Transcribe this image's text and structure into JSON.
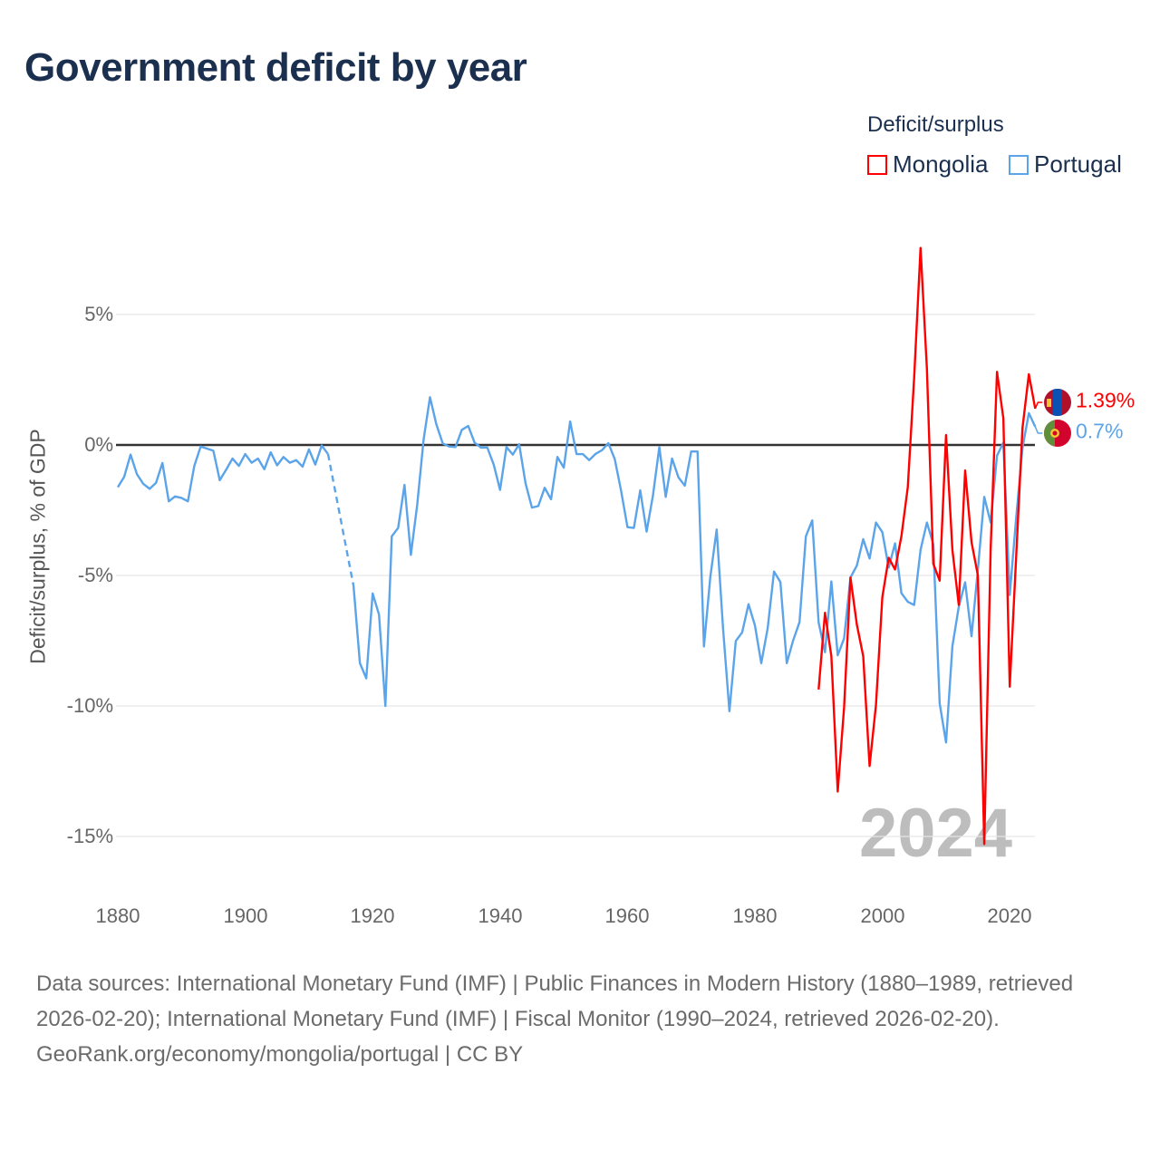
{
  "chart_data": {
    "type": "line",
    "title": "Government deficit by year",
    "xlabel": "",
    "ylabel": "Deficit/surplus, % of GDP",
    "xlim": [
      1880,
      2024
    ],
    "ylim": [
      -15,
      5
    ],
    "x_ticks": [
      "1880",
      "1900",
      "1920",
      "1940",
      "1960",
      "1980",
      "2000",
      "2020"
    ],
    "x_tick_values": [
      1880,
      1900,
      1920,
      1940,
      1960,
      1980,
      2000,
      2020
    ],
    "y_ticks": [
      "5%",
      "0%",
      "-5%",
      "-10%",
      "-15%"
    ],
    "y_tick_values": [
      5,
      0,
      -5,
      -10,
      -15
    ],
    "grid": true,
    "legend": {
      "title": "Deficit/surplus",
      "placement": "top-right"
    },
    "current_year": "2024",
    "series": [
      {
        "name": "Mongolia",
        "color": "#ff0000",
        "start_year": 1990,
        "end_label": "1.39%",
        "values": [
          -9.37,
          -6.43,
          -8.09,
          -13.28,
          -10.05,
          -5.08,
          -6.88,
          -8.09,
          -12.3,
          -9.97,
          -5.83,
          -4.32,
          -4.77,
          -3.49,
          -1.61,
          2.6,
          7.55,
          2.91,
          -4.55,
          -5.2,
          0.38,
          -4.02,
          -6.13,
          -0.98,
          -3.72,
          -5.0,
          -15.29,
          -4.02,
          2.8,
          1.02,
          -9.26,
          -4.32,
          0.65,
          2.71,
          1.39
        ]
      },
      {
        "name": "Portugal",
        "color": "#5ba4ea",
        "start_year": 1880,
        "end_label": "0.7%",
        "values": [
          -1.62,
          -1.22,
          -0.37,
          -1.12,
          -1.49,
          -1.68,
          -1.45,
          -0.69,
          -2.16,
          -1.97,
          -2.03,
          -2.16,
          -0.81,
          -0.06,
          -0.14,
          -0.22,
          -1.35,
          -0.95,
          -0.52,
          -0.8,
          -0.35,
          -0.68,
          -0.52,
          -0.93,
          -0.28,
          -0.78,
          -0.46,
          -0.68,
          -0.58,
          -0.83,
          -0.17,
          -0.75,
          -0.02,
          -0.35,
          null,
          null,
          null,
          -5.4,
          -8.36,
          -8.94,
          -5.69,
          -6.5,
          -10.0,
          -3.5,
          -3.18,
          -1.53,
          -4.21,
          -2.28,
          0.21,
          1.83,
          0.79,
          0.06,
          -0.06,
          -0.08,
          0.58,
          0.73,
          0.09,
          -0.1,
          -0.1,
          -0.75,
          -1.72,
          -0.08,
          -0.37,
          0.03,
          -1.47,
          -2.4,
          -2.34,
          -1.64,
          -2.08,
          -0.46,
          -0.87,
          0.9,
          -0.35,
          -0.35,
          -0.58,
          -0.34,
          -0.2,
          0.07,
          -0.54,
          -1.76,
          -3.15,
          -3.18,
          -1.74,
          -3.32,
          -1.93,
          -0.08,
          -1.99,
          -0.52,
          -1.24,
          -1.56,
          -0.25,
          -0.25,
          -7.72,
          -5.06,
          -3.24,
          -7.03,
          -10.2,
          -7.51,
          -7.18,
          -6.1,
          -6.91,
          -8.36,
          -7.03,
          -4.85,
          -5.25,
          -8.36,
          -7.49,
          -6.79,
          -3.5,
          -2.89,
          -6.8,
          -7.94,
          -5.23,
          -8.06,
          -7.41,
          -5.08,
          -4.62,
          -3.61,
          -4.35,
          -2.97,
          -3.34,
          -4.7,
          -3.77,
          -5.68,
          -6.01,
          -6.13,
          -4.02,
          -2.97,
          -3.8,
          -9.9,
          -11.4,
          -7.71,
          -6.2,
          -5.26,
          -7.33,
          -4.77,
          -1.99,
          -2.97,
          -0.41,
          0.09,
          -5.75,
          -2.82,
          -0.11,
          1.22,
          0.7
        ]
      }
    ]
  },
  "footer": {
    "sources": "Data sources: International Monetary Fund (IMF) | Public Finances in Modern History (1880–1989, retrieved 2026-02-20); International Monetary Fund (IMF) | Fiscal Monitor (1990–2024, retrieved 2026-02-20).",
    "credit": "GeoRank.org/economy/mongolia/portugal | CC BY"
  }
}
